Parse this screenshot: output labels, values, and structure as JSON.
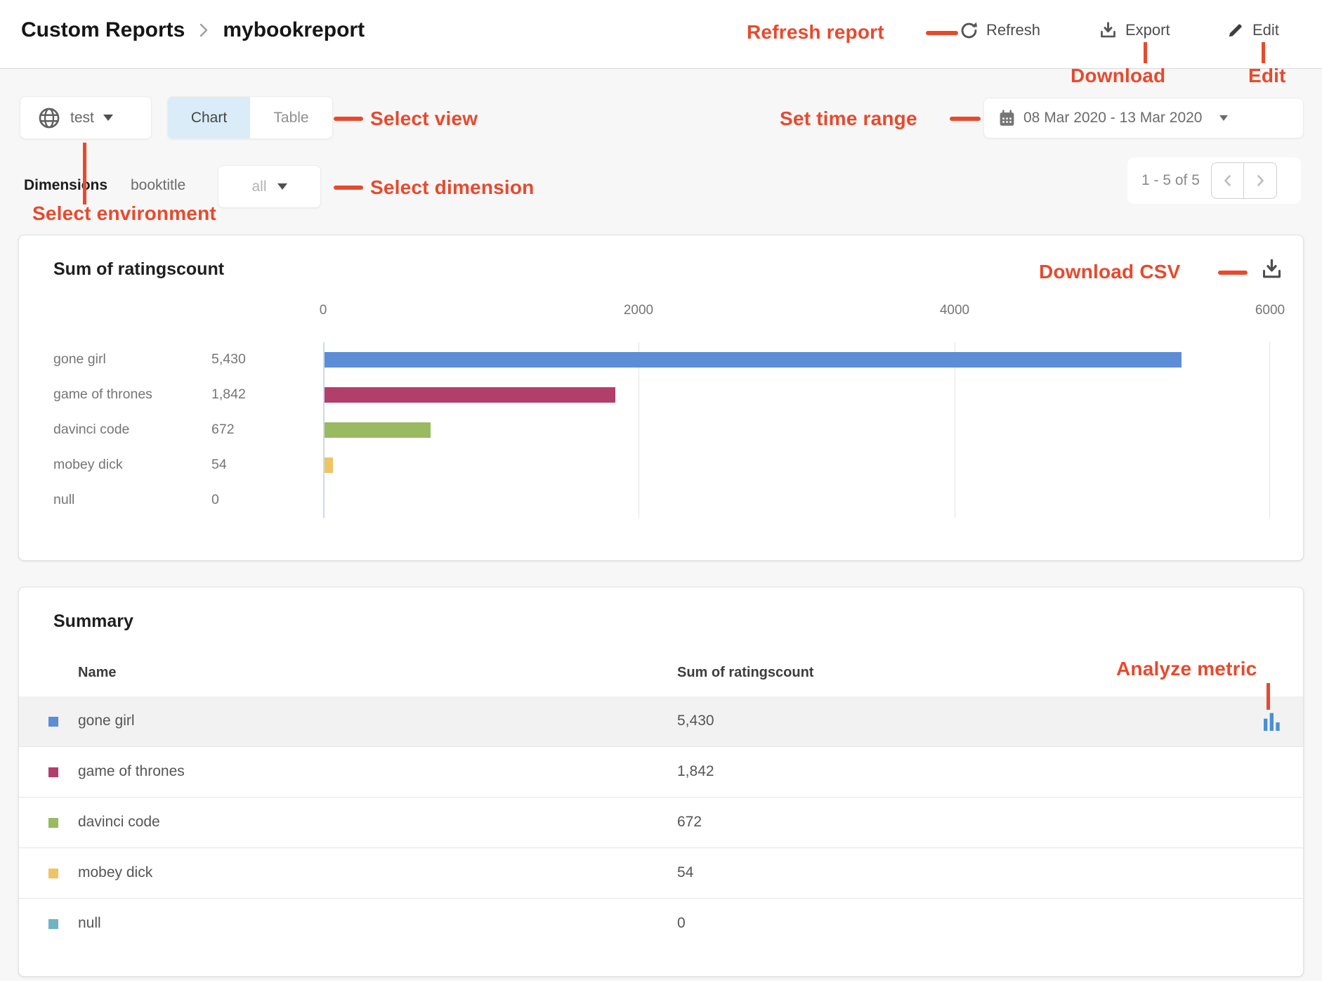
{
  "annotation_color": "#e8492d",
  "header": {
    "breadcrumb": {
      "root": "Custom Reports",
      "current": "mybookreport"
    },
    "refresh_label": "Refresh",
    "export_label": "Export",
    "edit_label": "Edit"
  },
  "annotations": {
    "refresh_report": "Refresh report",
    "download": "Download",
    "edit": "Edit",
    "select_view": "Select view",
    "set_time_range": "Set time range",
    "select_dimension": "Select dimension",
    "select_environment": "Select environment",
    "download_csv": "Download CSV",
    "analyze_metric": "Analyze metric"
  },
  "toolbar": {
    "environment": "test",
    "view_tabs": {
      "chart": "Chart",
      "table": "Table",
      "active": "Chart"
    },
    "date_range": "08 Mar 2020 - 13 Mar 2020"
  },
  "dimensions": {
    "label": "Dimensions",
    "dimension_name": "booktitle",
    "selected_value": "all"
  },
  "pagination": {
    "range_text": "1 - 5 of 5",
    "prev_icon": "chevron-left",
    "next_icon": "chevron-right"
  },
  "chart": {
    "title": "Sum of ratingscount"
  },
  "chart_data": {
    "type": "bar",
    "orientation": "horizontal",
    "title": "Sum of ratingscount",
    "categories": [
      "gone girl",
      "game of thrones",
      "davinci code",
      "mobey dick",
      "null"
    ],
    "values": [
      5430,
      1842,
      672,
      54,
      0
    ],
    "value_labels": [
      "5,430",
      "1,842",
      "672",
      "54",
      "0"
    ],
    "colors": [
      "#5c8dd6",
      "#b23e6a",
      "#99ba60",
      "#eec464",
      "#6fb4c4"
    ],
    "xlim": [
      0,
      6000
    ],
    "x_ticks": [
      "0",
      "2000",
      "4000",
      "6000"
    ],
    "grid": true,
    "legend": "none"
  },
  "summary": {
    "title": "Summary",
    "columns": [
      "Name",
      "Sum of ratingscount"
    ],
    "rows": [
      {
        "name": "gone girl",
        "value": "5,430",
        "color": "#5c8dd6",
        "highlighted": true
      },
      {
        "name": "game of thrones",
        "value": "1,842",
        "color": "#b23e6a",
        "highlighted": false
      },
      {
        "name": "davinci code",
        "value": "672",
        "color": "#99ba60",
        "highlighted": false
      },
      {
        "name": "mobey dick",
        "value": "54",
        "color": "#eec464",
        "highlighted": false
      },
      {
        "name": "null",
        "value": "0",
        "color": "#6fb4c4",
        "highlighted": false
      }
    ]
  }
}
